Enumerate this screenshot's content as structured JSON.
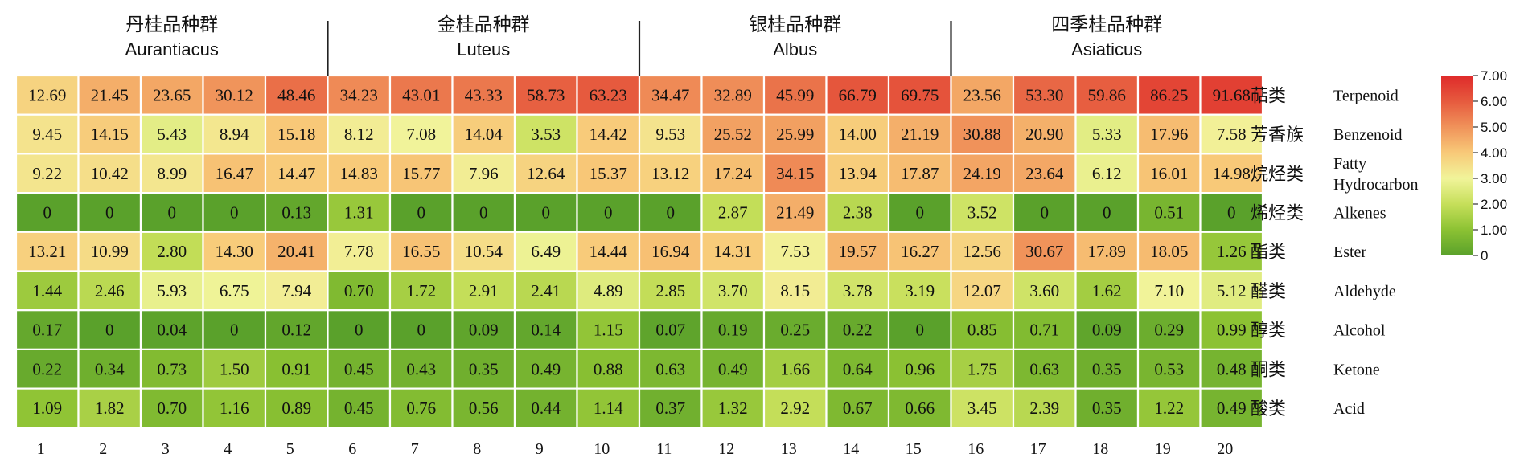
{
  "chart_data": {
    "type": "heatmap",
    "columns": [
      "1",
      "2",
      "3",
      "4",
      "5",
      "6",
      "7",
      "8",
      "9",
      "10",
      "11",
      "12",
      "13",
      "14",
      "15",
      "16",
      "17",
      "18",
      "19",
      "20"
    ],
    "groups": [
      {
        "name_cn": "丹桂品种群",
        "name_en": "Aurantiacus",
        "columns": [
          1,
          5
        ]
      },
      {
        "name_cn": "金桂品种群",
        "name_en": "Luteus",
        "columns": [
          6,
          10
        ]
      },
      {
        "name_cn": "银桂品种群",
        "name_en": "Albus",
        "columns": [
          11,
          15
        ]
      },
      {
        "name_cn": "四季桂品种群",
        "name_en": "Asiaticus",
        "columns": [
          16,
          20
        ]
      }
    ],
    "rows": [
      {
        "cn": "萜类",
        "en": [
          "Terpenoid"
        ],
        "values": [
          "12.69",
          "21.45",
          "23.65",
          "30.12",
          "48.46",
          "34.23",
          "43.01",
          "43.33",
          "58.73",
          "63.23",
          "34.47",
          "32.89",
          "45.99",
          "66.79",
          "69.75",
          "23.56",
          "53.30",
          "59.86",
          "86.25",
          "91.68"
        ]
      },
      {
        "cn": "芳香族",
        "en": [
          "Benzenoid"
        ],
        "values": [
          "9.45",
          "14.15",
          "5.43",
          "8.94",
          "15.18",
          "8.12",
          "7.08",
          "14.04",
          "3.53",
          "14.42",
          "9.53",
          "25.52",
          "25.99",
          "14.00",
          "21.19",
          "30.88",
          "20.90",
          "5.33",
          "17.96",
          "7.58"
        ]
      },
      {
        "cn": "烷烃类",
        "en": [
          "Fatty",
          "Hydrocarbon"
        ],
        "values": [
          "9.22",
          "10.42",
          "8.99",
          "16.47",
          "14.47",
          "14.83",
          "15.77",
          "7.96",
          "12.64",
          "15.37",
          "13.12",
          "17.24",
          "34.15",
          "13.94",
          "17.87",
          "24.19",
          "23.64",
          "6.12",
          "16.01",
          "14.98"
        ]
      },
      {
        "cn": "烯烃类",
        "en": [
          "Alkenes"
        ],
        "values": [
          "0",
          "0",
          "0",
          "0",
          "0.13",
          "1.31",
          "0",
          "0",
          "0",
          "0",
          "0",
          "2.87",
          "21.49",
          "2.38",
          "0",
          "3.52",
          "0",
          "0",
          "0.51",
          "0"
        ]
      },
      {
        "cn": "酯类",
        "en": [
          "Ester"
        ],
        "values": [
          "13.21",
          "10.99",
          "2.80",
          "14.30",
          "20.41",
          "7.78",
          "16.55",
          "10.54",
          "6.49",
          "14.44",
          "16.94",
          "14.31",
          "7.53",
          "19.57",
          "16.27",
          "12.56",
          "30.67",
          "17.89",
          "18.05",
          "1.26"
        ]
      },
      {
        "cn": "醛类",
        "en": [
          "Aldehyde"
        ],
        "values": [
          "1.44",
          "2.46",
          "5.93",
          "6.75",
          "7.94",
          "0.70",
          "1.72",
          "2.91",
          "2.41",
          "4.89",
          "2.85",
          "3.70",
          "8.15",
          "3.78",
          "3.19",
          "12.07",
          "3.60",
          "1.62",
          "7.10",
          "5.12"
        ]
      },
      {
        "cn": "醇类",
        "en": [
          "Alcohol"
        ],
        "values": [
          "0.17",
          "0",
          "0.04",
          "0",
          "0.12",
          "0",
          "0",
          "0.09",
          "0.14",
          "1.15",
          "0.07",
          "0.19",
          "0.25",
          "0.22",
          "0",
          "0.85",
          "0.71",
          "0.09",
          "0.29",
          "0.99"
        ]
      },
      {
        "cn": "酮类",
        "en": [
          "Ketone"
        ],
        "values": [
          "0.22",
          "0.34",
          "0.73",
          "1.50",
          "0.91",
          "0.45",
          "0.43",
          "0.35",
          "0.49",
          "0.88",
          "0.63",
          "0.49",
          "1.66",
          "0.64",
          "0.96",
          "1.75",
          "0.63",
          "0.35",
          "0.53",
          "0.48"
        ]
      },
      {
        "cn": "酸类",
        "en": [
          "Acid"
        ],
        "values": [
          "1.09",
          "1.82",
          "0.70",
          "1.16",
          "0.89",
          "0.45",
          "0.76",
          "0.56",
          "0.44",
          "1.14",
          "0.37",
          "1.32",
          "2.92",
          "0.67",
          "0.66",
          "3.45",
          "2.39",
          "0.35",
          "1.22",
          "0.49"
        ]
      }
    ],
    "color_scale": {
      "type": "log-value",
      "min": 0,
      "max": 7.0,
      "ticks": [
        "0",
        "1.00",
        "2.00",
        "3.00",
        "4.00",
        "5.00",
        "6.00",
        "7.00"
      ],
      "colors": [
        "#5aa12b",
        "#8cc233",
        "#c6df5a",
        "#f1f49a",
        "#f8c978",
        "#f0925a",
        "#e65a3e",
        "#df2a2a"
      ]
    },
    "legend_placement": "right"
  }
}
